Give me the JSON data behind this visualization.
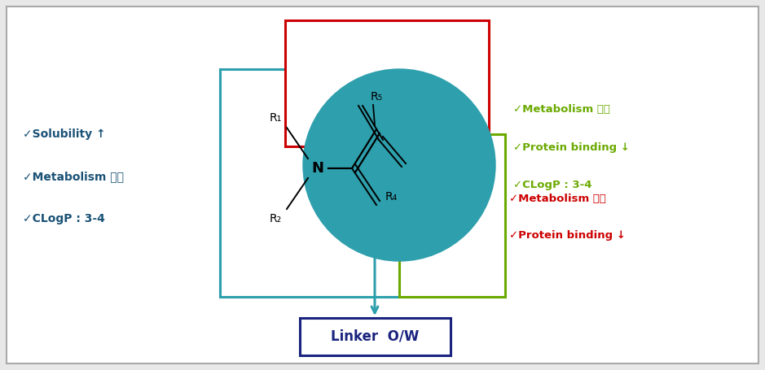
{
  "bg_color": "#e8e8e8",
  "inner_bg": "#ffffff",
  "title_box_text": "Linker  O/W",
  "title_box_color": "#1a237e",
  "left_text_lines": [
    "✓Solubility ↑",
    "✓Metabolism 방지",
    "✓CLogP : 3-4"
  ],
  "left_text_color": "#1a5276",
  "right_text_lines": [
    "✓Metabolism 방지",
    "✓Protein binding ↓",
    "✓CLogP : 3-4"
  ],
  "right_text_color": "#6aaa00",
  "bottom_right_text_lines": [
    "✓Metabolism 방지",
    "✓Protein binding ↓"
  ],
  "bottom_right_text_color": "#cc0000",
  "teal_color": "#2e9fad",
  "arrow_color": "#2e9fad"
}
